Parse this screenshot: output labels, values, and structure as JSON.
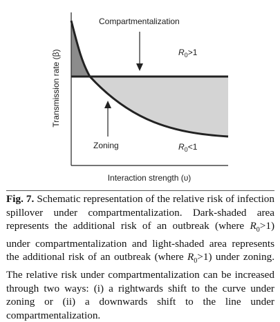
{
  "figure": {
    "top_label": "Compartmentalization",
    "bottom_label": "Zoning",
    "r0_symbol": "R",
    "r0_subscript": "0",
    "r0_above": ">1",
    "r0_below": "<1",
    "x_axis_label": "Interaction strength (υ)",
    "y_axis_label": "Transmission rate (β)"
  },
  "caption": {
    "fig_label": "Fig. 7.",
    "text_1": " Schematic representation of the relative risk of infection spillover under compartmentalization. Dark-shaded area represents the additional risk of an outbreak (where ",
    "text_2": ">1) under compartmentalization and light-shaded area represents the additional risk of an outbreak (where ",
    "text_3": ">1) under zoning. The relative risk under compartmentalization can be increased through two ways: (i) a rightwards shift to the curve under zoning or (ii) a downwards shift to the line under compartmentalization.",
    "r0_symbol": "R",
    "r0_subscript": "0"
  },
  "colors": {
    "dark_shade": "#8c8c8c",
    "light_shade": "#d4d4d4",
    "line": "#222222"
  }
}
